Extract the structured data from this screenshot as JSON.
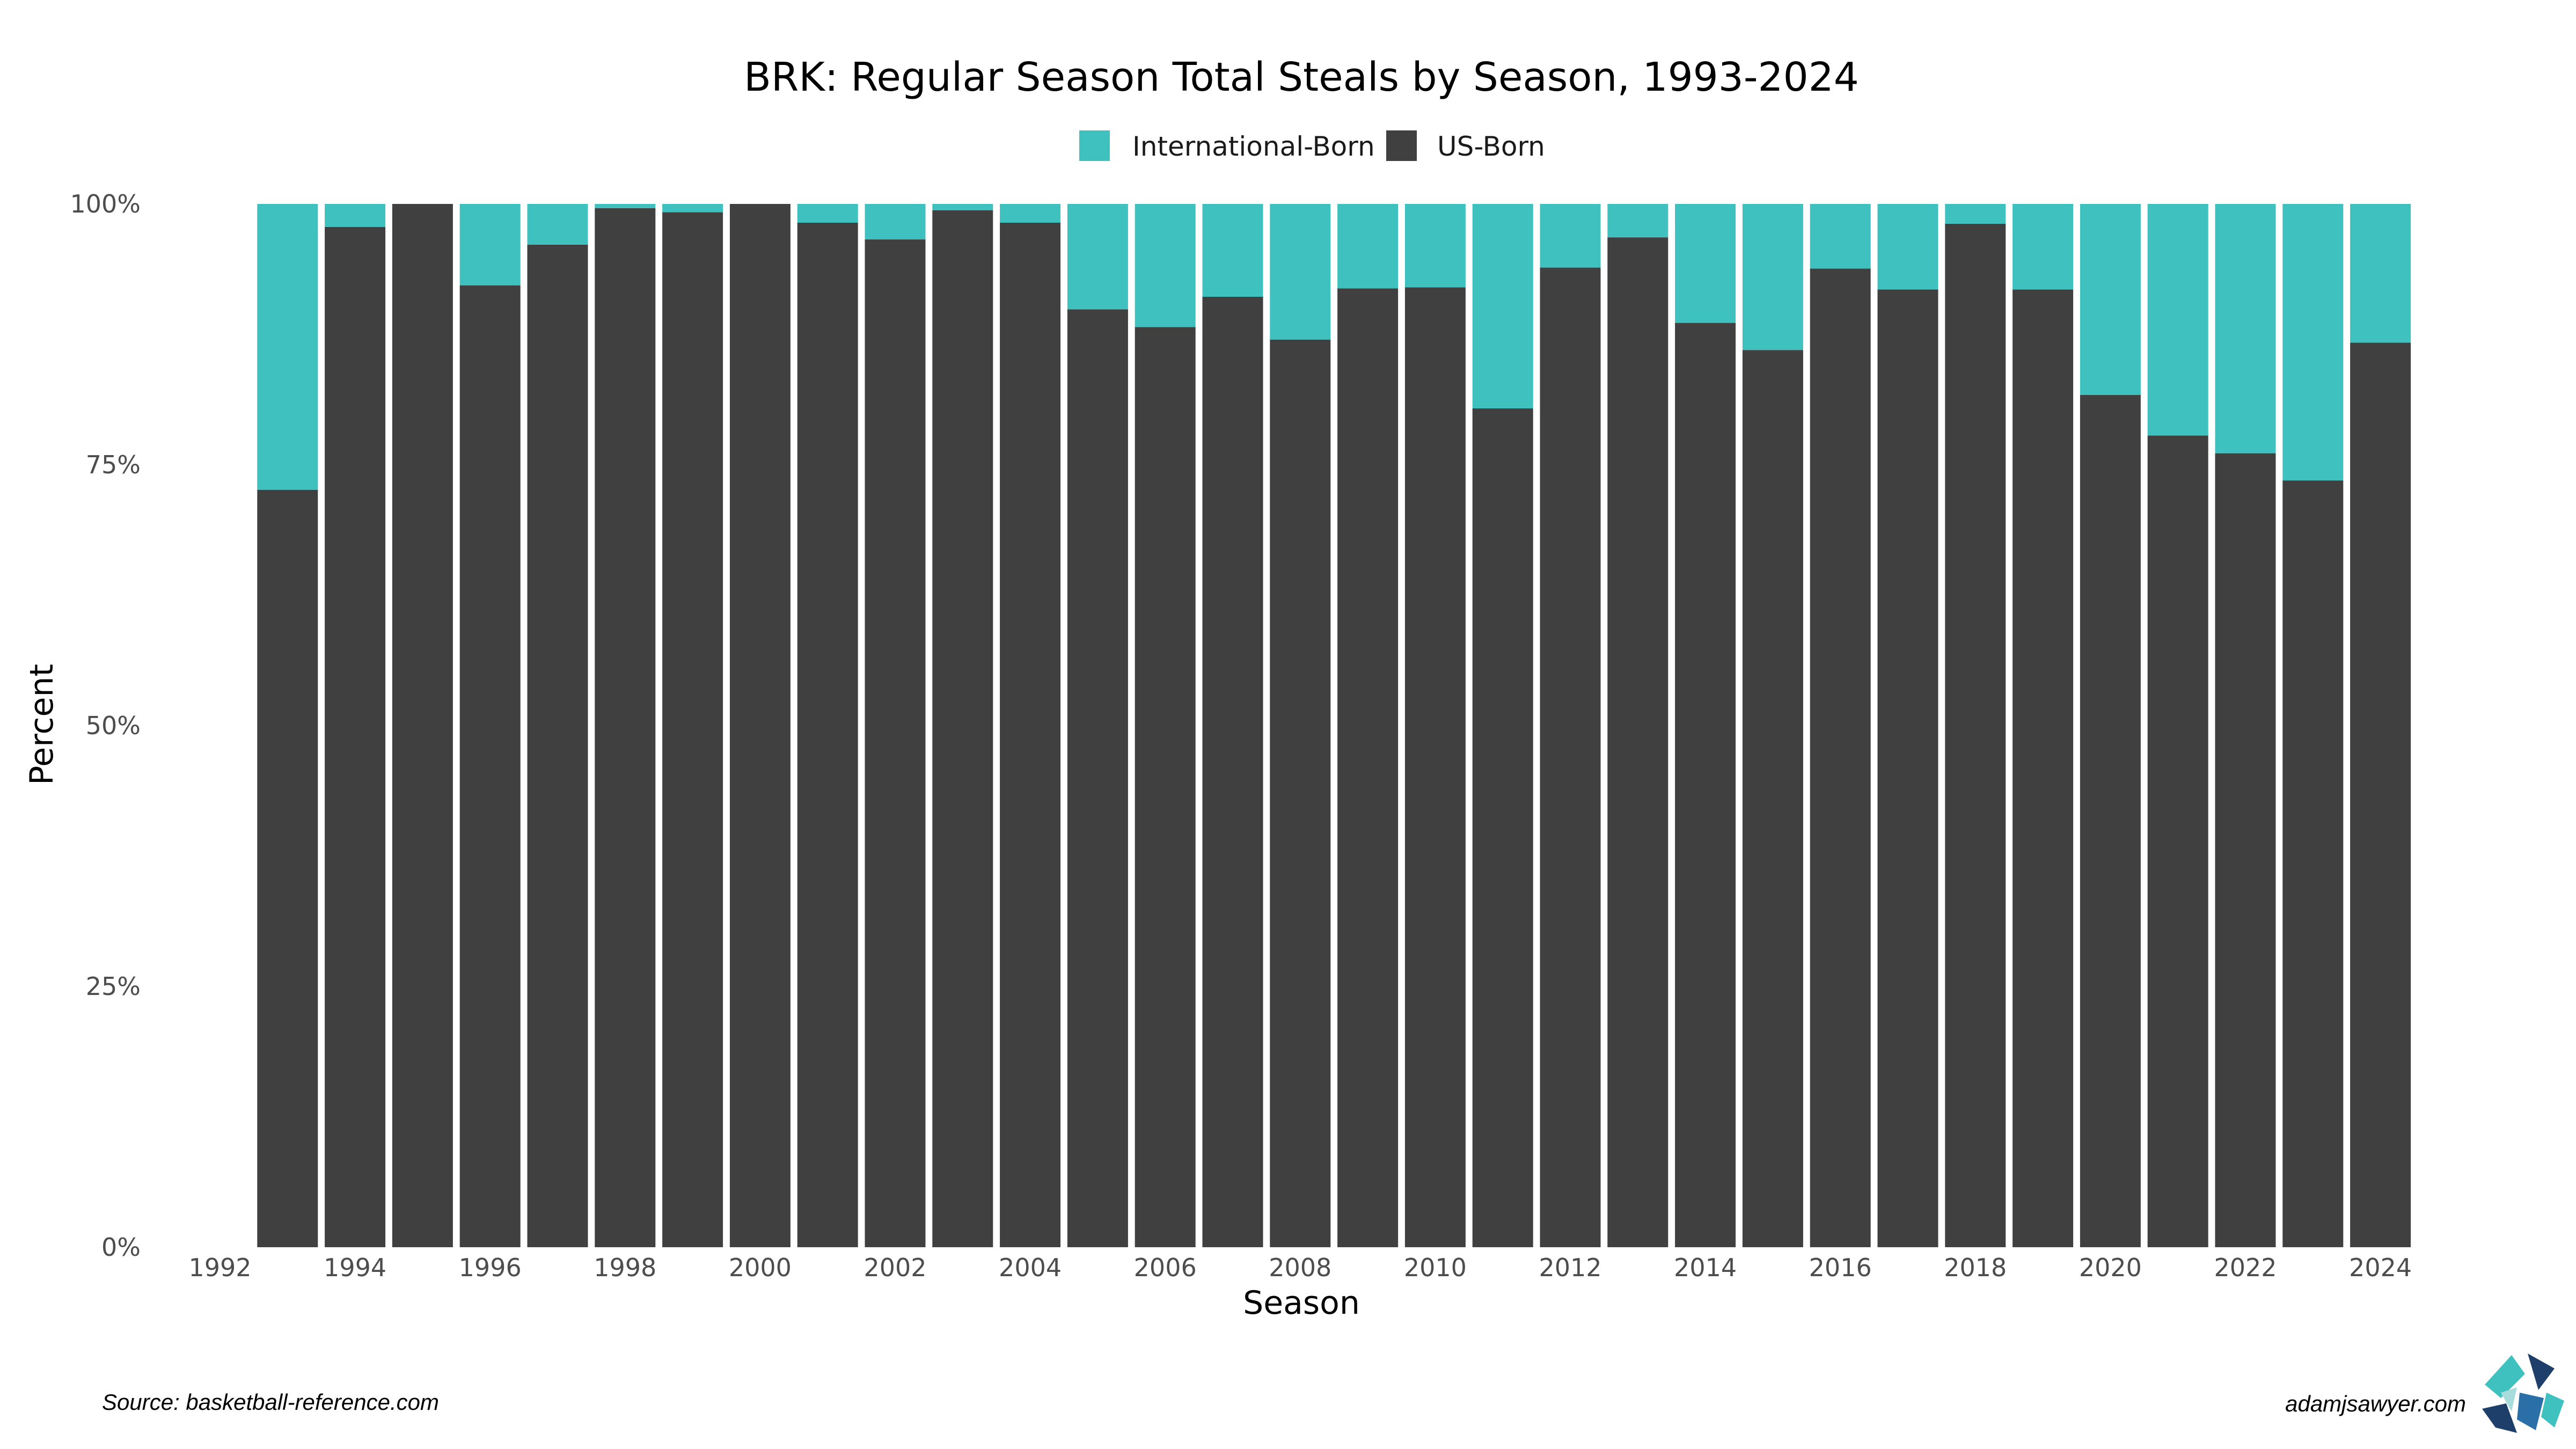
{
  "chart_data": {
    "type": "bar",
    "stacked": true,
    "title": "BRK: Regular Season Total Steals by Season, 1993-2024",
    "xlabel": "Season",
    "ylabel": "Percent",
    "xlim": [
      1992,
      2024
    ],
    "ylim": [
      0,
      100
    ],
    "x_ticks": [
      "1992",
      "1994",
      "1996",
      "1998",
      "2000",
      "2002",
      "2004",
      "2006",
      "2008",
      "2010",
      "2012",
      "2014",
      "2016",
      "2018",
      "2020",
      "2022",
      "2024"
    ],
    "y_ticks": [
      "0%",
      "25%",
      "50%",
      "75%",
      "100%"
    ],
    "y_tick_values": [
      0,
      25,
      50,
      75,
      100
    ],
    "legend": {
      "position": "top",
      "entries": [
        "International-Born",
        "US-Born"
      ]
    },
    "categories": [
      1993,
      1994,
      1995,
      1996,
      1997,
      1998,
      1999,
      2000,
      2001,
      2002,
      2003,
      2004,
      2005,
      2006,
      2007,
      2008,
      2009,
      2010,
      2011,
      2012,
      2013,
      2014,
      2015,
      2016,
      2017,
      2018,
      2019,
      2020,
      2021,
      2022,
      2023,
      2024
    ],
    "series": [
      {
        "name": "US-Born",
        "color": "#404040",
        "values": [
          72.6,
          97.8,
          100,
          92.2,
          96.1,
          99.6,
          99.2,
          100,
          98.2,
          96.6,
          99.4,
          98.2,
          89.9,
          88.2,
          91.1,
          87.0,
          91.9,
          92.0,
          80.4,
          93.9,
          96.8,
          88.6,
          86.0,
          93.8,
          91.8,
          98.1,
          91.8,
          81.7,
          77.8,
          76.1,
          73.5,
          86.7
        ]
      },
      {
        "name": "International-Born",
        "color": "#3fc1c0",
        "values": [
          27.4,
          2.2,
          0,
          7.8,
          3.9,
          0.4,
          0.8,
          0,
          1.8,
          3.4,
          0.6,
          1.8,
          10.1,
          11.8,
          8.9,
          13.0,
          8.1,
          8.0,
          19.6,
          6.1,
          3.2,
          11.4,
          14.0,
          6.2,
          8.2,
          1.9,
          8.2,
          18.3,
          22.2,
          23.9,
          26.5,
          13.3
        ]
      }
    ],
    "source": "Source: basketball-reference.com",
    "site": "adamjsawyer.com"
  },
  "colors": {
    "us_born": "#404040",
    "international": "#3fc1c0",
    "logo_navy": "#1f3f6b",
    "logo_teal": "#3fc1c0"
  },
  "icons": {
    "logo": "adamjsawyer-logo-icon"
  }
}
